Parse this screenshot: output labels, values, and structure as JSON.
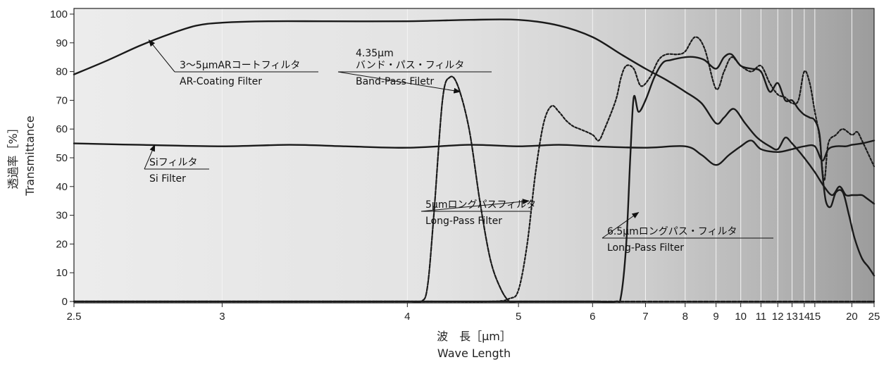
{
  "chart_data": {
    "type": "line",
    "title": "",
    "xlabel_jp": "波　長［μm］",
    "xlabel": "Wave Length",
    "ylabel_jp": "透過率［%］",
    "ylabel": "Transmittance",
    "x_scale": "reciprocal",
    "xlim": [
      2.5,
      25
    ],
    "ylim": [
      0,
      100
    ],
    "x_ticks": [
      2.5,
      3,
      4,
      5,
      6,
      7,
      8,
      9,
      10,
      11,
      12,
      13,
      14,
      15,
      20,
      25
    ],
    "x_tick_labels": [
      "2.5",
      "3",
      "4",
      "5",
      "6",
      "7",
      "8",
      "9",
      "10",
      "11",
      "12",
      "13",
      "14",
      "15",
      "20",
      "25"
    ],
    "y_ticks": [
      0,
      10,
      20,
      30,
      40,
      50,
      60,
      70,
      80,
      90,
      100
    ],
    "y_tick_labels": [
      "0",
      "10",
      "20",
      "30",
      "40",
      "50",
      "60",
      "70",
      "80",
      "90",
      "100"
    ],
    "grid": "vertical",
    "background": "gradient light-to-dark gray",
    "series": [
      {
        "name_jp": "3〜5μmARコートフィルタ",
        "name": "AR-Coating Filter",
        "style": "solid",
        "points": [
          [
            2.5,
            79
          ],
          [
            2.6,
            84
          ],
          [
            2.7,
            89
          ],
          [
            2.8,
            93
          ],
          [
            2.9,
            96
          ],
          [
            3.0,
            97
          ],
          [
            3.2,
            97.5
          ],
          [
            3.5,
            97.5
          ],
          [
            4.0,
            97.5
          ],
          [
            4.5,
            98
          ],
          [
            5.0,
            98
          ],
          [
            5.5,
            96
          ],
          [
            6.0,
            92
          ],
          [
            6.5,
            86
          ],
          [
            7.0,
            81
          ],
          [
            7.5,
            77
          ],
          [
            8.0,
            73
          ],
          [
            8.5,
            69
          ],
          [
            9.0,
            62
          ],
          [
            9.3,
            64
          ],
          [
            9.7,
            67
          ],
          [
            10.2,
            62
          ],
          [
            10.8,
            57
          ],
          [
            11.5,
            54
          ],
          [
            12.0,
            53
          ],
          [
            12.5,
            57
          ],
          [
            13.0,
            55
          ],
          [
            14.0,
            50
          ],
          [
            15.0,
            45
          ],
          [
            16.0,
            40
          ],
          [
            17.0,
            37
          ],
          [
            18.0,
            40
          ],
          [
            19.0,
            37
          ],
          [
            20.0,
            37
          ],
          [
            21.0,
            37
          ],
          [
            22.0,
            37
          ],
          [
            23.0,
            36
          ],
          [
            25.0,
            34
          ]
        ]
      },
      {
        "name_jp": "Siフィルタ",
        "name": "Si Filter",
        "style": "solid",
        "points": [
          [
            2.5,
            55
          ],
          [
            2.7,
            54.5
          ],
          [
            3.0,
            54
          ],
          [
            3.3,
            54.5
          ],
          [
            3.6,
            54
          ],
          [
            4.0,
            53.5
          ],
          [
            4.5,
            54.5
          ],
          [
            5.0,
            54
          ],
          [
            5.5,
            54.5
          ],
          [
            6.0,
            54
          ],
          [
            7.0,
            53.5
          ],
          [
            8.0,
            54
          ],
          [
            8.5,
            51
          ],
          [
            9.0,
            47.5
          ],
          [
            9.5,
            51
          ],
          [
            10.0,
            54
          ],
          [
            10.5,
            56
          ],
          [
            11.0,
            53
          ],
          [
            12.0,
            52
          ],
          [
            13.0,
            53
          ],
          [
            14.0,
            54
          ],
          [
            15.0,
            54
          ],
          [
            15.8,
            49
          ],
          [
            16.5,
            53
          ],
          [
            17.5,
            54
          ],
          [
            19.0,
            54
          ],
          [
            20.0,
            54.5
          ],
          [
            22.0,
            55
          ],
          [
            25.0,
            56
          ]
        ]
      },
      {
        "name_jp": "4.35μmバンド・パス・フィルタ",
        "name": "Band-Pass Filetr",
        "style": "dashed",
        "points": [
          [
            2.5,
            0
          ],
          [
            3.0,
            0
          ],
          [
            3.5,
            0
          ],
          [
            4.0,
            0
          ],
          [
            4.1,
            0
          ],
          [
            4.15,
            5
          ],
          [
            4.2,
            30
          ],
          [
            4.27,
            70
          ],
          [
            4.33,
            78
          ],
          [
            4.4,
            75
          ],
          [
            4.5,
            60
          ],
          [
            4.6,
            35
          ],
          [
            4.7,
            15
          ],
          [
            4.8,
            5
          ],
          [
            4.9,
            0
          ],
          [
            5.0,
            0
          ],
          [
            5.5,
            0
          ],
          [
            6.0,
            0
          ],
          [
            7.0,
            0
          ],
          [
            8.0,
            0
          ],
          [
            10.0,
            0
          ],
          [
            15.0,
            0
          ],
          [
            25.0,
            0
          ]
        ]
      },
      {
        "name_jp": "5μmロングパスフィルタ",
        "name": "Long-Pass Filter",
        "style": "dotted",
        "points": [
          [
            2.5,
            0
          ],
          [
            4.0,
            0
          ],
          [
            4.7,
            0
          ],
          [
            4.9,
            1
          ],
          [
            5.0,
            4
          ],
          [
            5.1,
            20
          ],
          [
            5.2,
            45
          ],
          [
            5.3,
            62
          ],
          [
            5.4,
            68
          ],
          [
            5.5,
            66
          ],
          [
            5.6,
            63
          ],
          [
            5.7,
            61
          ],
          [
            5.8,
            60
          ],
          [
            6.0,
            58
          ],
          [
            6.1,
            56
          ],
          [
            6.2,
            60
          ],
          [
            6.4,
            70
          ],
          [
            6.5,
            78
          ],
          [
            6.6,
            82
          ],
          [
            6.75,
            81
          ],
          [
            6.9,
            75
          ],
          [
            7.1,
            78
          ],
          [
            7.3,
            84
          ],
          [
            7.5,
            86
          ],
          [
            7.8,
            86
          ],
          [
            8.0,
            87
          ],
          [
            8.3,
            92
          ],
          [
            8.6,
            88
          ],
          [
            9.0,
            74
          ],
          [
            9.3,
            80
          ],
          [
            9.6,
            85
          ],
          [
            10.0,
            82
          ],
          [
            10.5,
            80
          ],
          [
            11.0,
            82
          ],
          [
            11.5,
            76
          ],
          [
            12.0,
            72
          ],
          [
            12.5,
            71
          ],
          [
            13.0,
            69
          ],
          [
            13.5,
            70
          ],
          [
            14.0,
            80
          ],
          [
            14.5,
            76
          ],
          [
            15.0,
            66
          ],
          [
            15.5,
            57
          ],
          [
            16.0,
            42
          ],
          [
            16.5,
            55
          ],
          [
            17.5,
            58
          ],
          [
            18.5,
            60
          ],
          [
            20.0,
            58
          ],
          [
            21.0,
            59
          ],
          [
            22.0,
            56
          ],
          [
            25.0,
            47
          ]
        ]
      },
      {
        "name_jp": "6.5μmロングパス・フィルタ",
        "name": "Long-Pass Filter",
        "style": "solid",
        "points": [
          [
            2.5,
            0
          ],
          [
            4.0,
            0
          ],
          [
            5.0,
            0
          ],
          [
            6.0,
            0
          ],
          [
            6.4,
            0
          ],
          [
            6.5,
            2
          ],
          [
            6.6,
            20
          ],
          [
            6.68,
            50
          ],
          [
            6.75,
            71
          ],
          [
            6.85,
            66
          ],
          [
            7.0,
            70
          ],
          [
            7.2,
            78
          ],
          [
            7.4,
            83
          ],
          [
            7.6,
            84
          ],
          [
            8.0,
            85
          ],
          [
            8.3,
            85
          ],
          [
            8.6,
            84
          ],
          [
            9.0,
            81
          ],
          [
            9.3,
            85
          ],
          [
            9.6,
            86
          ],
          [
            10.0,
            82
          ],
          [
            10.5,
            81
          ],
          [
            11.0,
            80
          ],
          [
            11.5,
            73
          ],
          [
            12.0,
            76
          ],
          [
            12.5,
            70
          ],
          [
            13.0,
            70
          ],
          [
            13.5,
            67
          ],
          [
            14.0,
            65
          ],
          [
            14.5,
            64
          ],
          [
            15.0,
            63
          ],
          [
            15.5,
            58
          ],
          [
            15.8,
            45
          ],
          [
            16.2,
            35
          ],
          [
            16.8,
            33
          ],
          [
            17.5,
            38
          ],
          [
            18.5,
            38
          ],
          [
            19.5,
            30
          ],
          [
            20.5,
            22
          ],
          [
            22.0,
            15
          ],
          [
            23.5,
            12
          ],
          [
            25.0,
            9
          ]
        ]
      }
    ],
    "annotations": [
      {
        "jp": "3〜5μmARコートフィルタ",
        "en": "AR-Coating Filter",
        "target": [
          2.73,
          91
        ]
      },
      {
        "jp": "4.35μm\nバンド・パス・フィルタ",
        "en": "Band-Pass Filetr",
        "target": [
          4.42,
          73
        ]
      },
      {
        "jp": "Siフィルタ",
        "en": "Si Filter",
        "target": [
          2.75,
          54.5
        ]
      },
      {
        "jp": "5μmロングパスフィルタ",
        "en": "Long-Pass Filter",
        "target": [
          5.12,
          35
        ]
      },
      {
        "jp": "6.5μmロングパス・フィルタ",
        "en": "Long-Pass Filter",
        "target": [
          6.85,
          31
        ]
      }
    ]
  }
}
